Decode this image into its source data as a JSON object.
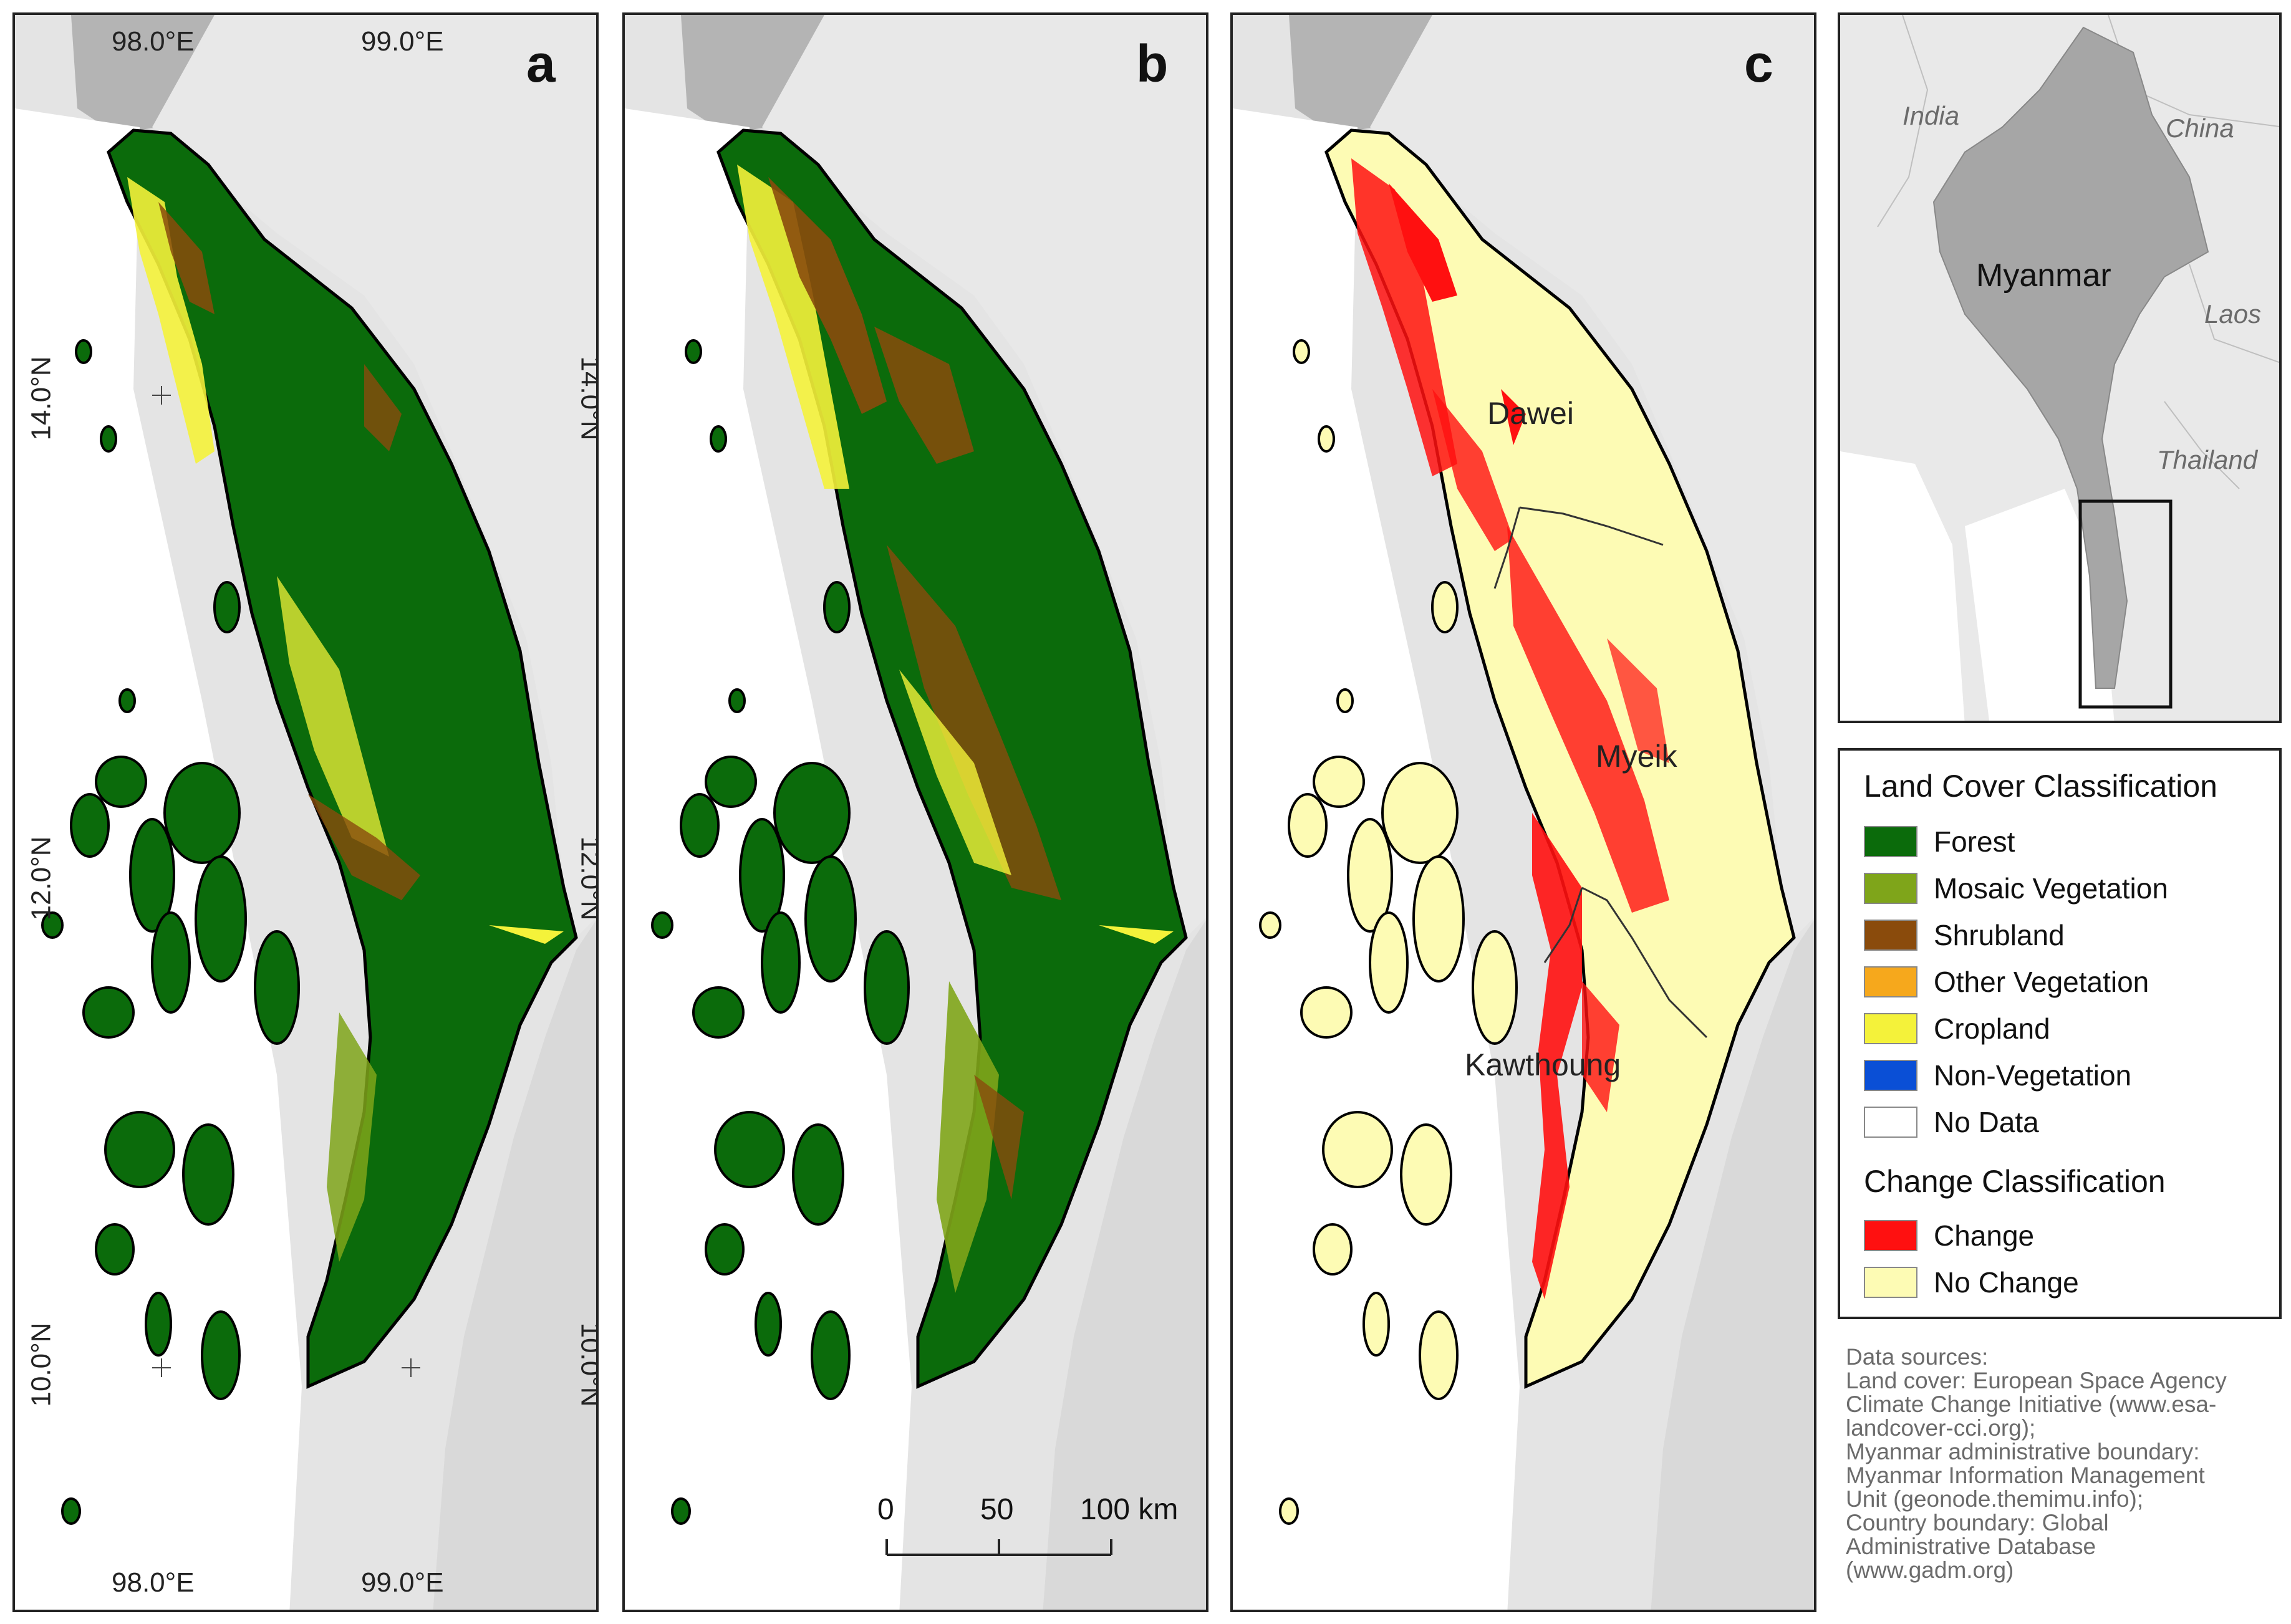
{
  "panels": {
    "a": {
      "letter": "a"
    },
    "b": {
      "letter": "b"
    },
    "c": {
      "letter": "c"
    }
  },
  "coordinates": {
    "lon_98": "98.0°E",
    "lon_99": "99.0°E",
    "lat_14": "14.0°N",
    "lat_12": "12.0°N",
    "lat_10": "10.0°N"
  },
  "towns": {
    "dawei": "Dawei",
    "myeik": "Myeik",
    "kawthoung": "Kawthoung"
  },
  "inset": {
    "india": "India",
    "china": "China",
    "myanmar": "Myanmar",
    "laos": "Laos",
    "thailand": "Thailand"
  },
  "scale_bar": {
    "tick_0": "0",
    "tick_50": "50",
    "tick_100": "100 km"
  },
  "legend": {
    "land_cover_title": "Land Cover Classification",
    "land_cover_items": [
      {
        "label": "Forest",
        "color": "#0b6b0b"
      },
      {
        "label": "Mosaic Vegetation",
        "color": "#7fa51a"
      },
      {
        "label": "Shrubland",
        "color": "#8a4b0c"
      },
      {
        "label": "Other Vegetation",
        "color": "#f6a81c"
      },
      {
        "label": "Cropland",
        "color": "#f4f23a"
      },
      {
        "label": "Non-Vegetation",
        "color": "#0a4fd6"
      },
      {
        "label": "No Data",
        "color": "#ffffff"
      }
    ],
    "change_title": "Change Classification",
    "change_items": [
      {
        "label": "Change",
        "color": "#ff1010"
      },
      {
        "label": "No Change",
        "color": "#fdfbb4"
      }
    ]
  },
  "sources": {
    "heading": "Data sources:",
    "land_cover": "Land cover: European Space Agency\nClimate Change Initiative (www.esa-\nlandcover-cci.org);",
    "admin": "Myanmar administrative boundary:\nMyanmar Information Management\nUnit (geonode.themimu.info);",
    "country": "Country boundary: Global\nAdministrative Database\n(www.gadm.org)"
  }
}
